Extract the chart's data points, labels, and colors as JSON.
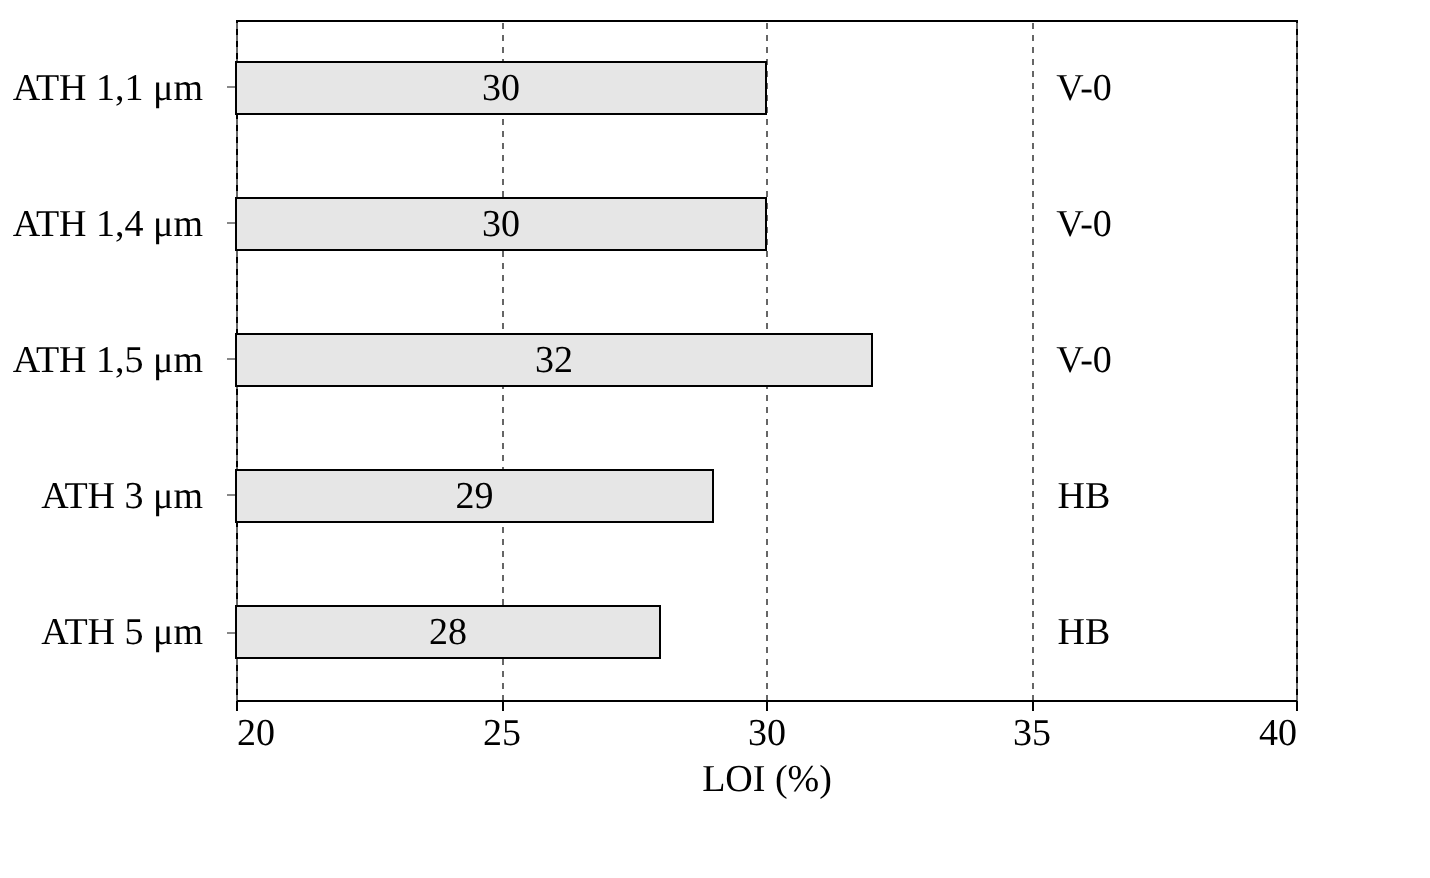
{
  "chart_data": {
    "type": "bar",
    "orientation": "horizontal",
    "xlabel": "LOI (%)",
    "categories": [
      "ATH 1,1 μm",
      "ATH 1,4 μm",
      "ATH 1,5 μm",
      "ATH 3 μm",
      "ATH 5 μm"
    ],
    "values": [
      30,
      30,
      32,
      29,
      28
    ],
    "color": "#e6e6e6",
    "xlim": [
      20,
      40
    ],
    "xticks": [
      20,
      25,
      30,
      35,
      40
    ],
    "grid": "x",
    "data_labels": true,
    "annotations": [
      "V-0",
      "V-0",
      "V-0",
      "HB",
      "HB"
    ]
  }
}
